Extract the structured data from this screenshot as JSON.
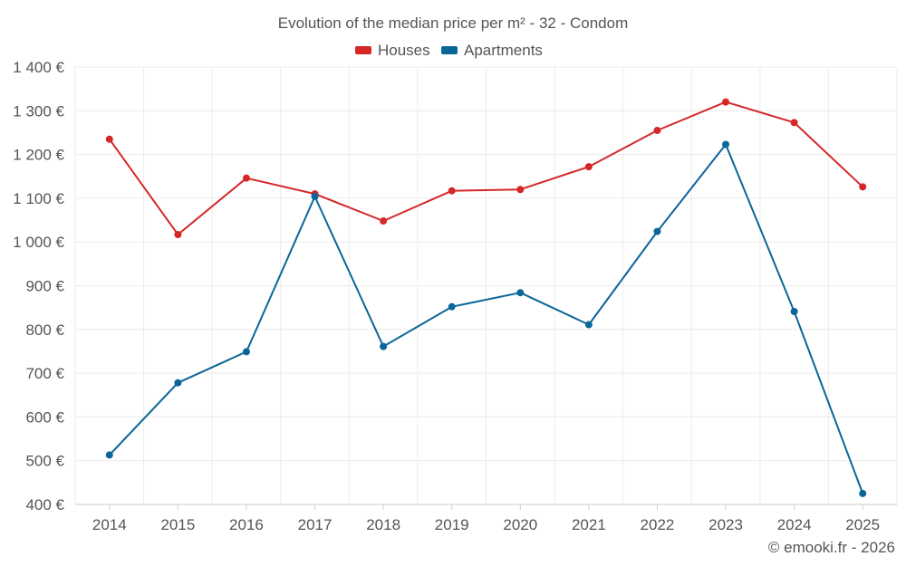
{
  "chart_data": {
    "type": "line",
    "title": "Evolution of the median price per m² - 32 - Condom",
    "categories": [
      "2014",
      "2015",
      "2016",
      "2017",
      "2018",
      "2019",
      "2020",
      "2021",
      "2022",
      "2023",
      "2024",
      "2025"
    ],
    "series": [
      {
        "name": "Houses",
        "color": "#d62728",
        "values": [
          1235,
          1017,
          1146,
          1110,
          1048,
          1117,
          1120,
          1172,
          1255,
          1320,
          1273,
          1126
        ]
      },
      {
        "name": "Apartments",
        "color": "#0b6698",
        "values": [
          513,
          678,
          749,
          1104,
          761,
          852,
          884,
          811,
          1024,
          1223,
          841,
          425
        ]
      }
    ],
    "ylim": [
      400,
      1400
    ],
    "yticks": [
      400,
      500,
      600,
      700,
      800,
      900,
      1000,
      1100,
      1200,
      1300,
      1400
    ],
    "ytick_labels": [
      "400 €",
      "500 €",
      "600 €",
      "700 €",
      "800 €",
      "900 €",
      "1 000 €",
      "1 100 €",
      "1 200 €",
      "1 300 €",
      "1 400 €"
    ],
    "xlabel": "",
    "ylabel": "",
    "grid": true,
    "legend_position": "top-center"
  },
  "credit": "© emooki.fr - 2026"
}
